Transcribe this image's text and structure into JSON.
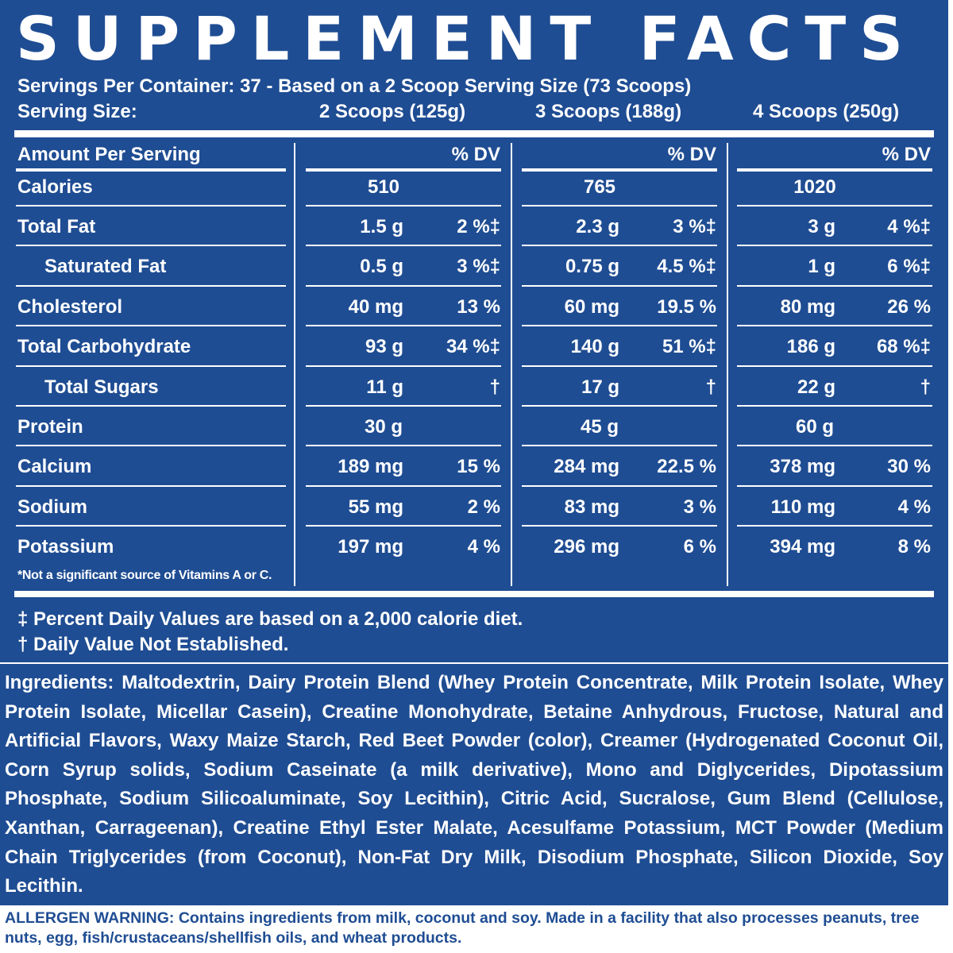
{
  "title": "SUPPLEMENT FACTS",
  "servings_per_container": "Servings Per Container: 37 - Based on a 2 Scoop Serving Size (73 Scoops)",
  "serving_size_label": "Serving Size:",
  "serving_sizes": [
    "2 Scoops (125g)",
    "3 Scoops (188g)",
    "4 Scoops (250g)"
  ],
  "header": {
    "amount_label": "Amount Per Serving",
    "dv_label": "% DV"
  },
  "rows": [
    {
      "name": "Calories",
      "indent": false,
      "values": [
        [
          "510",
          ""
        ],
        [
          "765",
          ""
        ],
        [
          "1020",
          ""
        ]
      ]
    },
    {
      "name": "Total Fat",
      "indent": false,
      "values": [
        [
          "1.5 g",
          "2 %‡"
        ],
        [
          "2.3 g",
          "3 %‡"
        ],
        [
          "3 g",
          "4 %‡"
        ]
      ]
    },
    {
      "name": "Saturated Fat",
      "indent": true,
      "values": [
        [
          "0.5 g",
          "3 %‡"
        ],
        [
          "0.75 g",
          "4.5 %‡"
        ],
        [
          "1 g",
          "6 %‡"
        ]
      ]
    },
    {
      "name": "Cholesterol",
      "indent": false,
      "values": [
        [
          "40 mg",
          "13 %"
        ],
        [
          "60 mg",
          "19.5 %"
        ],
        [
          "80 mg",
          "26 %"
        ]
      ]
    },
    {
      "name": "Total Carbohydrate",
      "indent": false,
      "values": [
        [
          "93 g",
          "34 %‡"
        ],
        [
          "140 g",
          "51 %‡"
        ],
        [
          "186 g",
          "68 %‡"
        ]
      ]
    },
    {
      "name": "Total Sugars",
      "indent": true,
      "values": [
        [
          "11 g",
          "†"
        ],
        [
          "17 g",
          "†"
        ],
        [
          "22 g",
          "†"
        ]
      ]
    },
    {
      "name": "Protein",
      "indent": false,
      "values": [
        [
          "30 g",
          ""
        ],
        [
          "45 g",
          ""
        ],
        [
          "60 g",
          ""
        ]
      ]
    },
    {
      "name": "Calcium",
      "indent": false,
      "values": [
        [
          "189 mg",
          "15 %"
        ],
        [
          "284 mg",
          "22.5 %"
        ],
        [
          "378 mg",
          "30 %"
        ]
      ]
    },
    {
      "name": "Sodium",
      "indent": false,
      "values": [
        [
          "55 mg",
          "2 %"
        ],
        [
          "83 mg",
          "3 %"
        ],
        [
          "110 mg",
          "4 %"
        ]
      ]
    },
    {
      "name": "Potassium",
      "indent": false,
      "values": [
        [
          "197 mg",
          "4 %"
        ],
        [
          "296 mg",
          "6 %"
        ],
        [
          "394 mg",
          "8 %"
        ]
      ]
    }
  ],
  "vitamin_note": "*Not a significant source of Vitamins A or C.",
  "footnote_dv": "‡ Percent Daily Values are based on a 2,000 calorie diet.",
  "footnote_not_established": "† Daily Value Not Established.",
  "ingredients": "Ingredients: Maltodextrin, Dairy Protein Blend (Whey Protein Concentrate, Milk Protein Isolate, Whey Protein Isolate, Micellar Casein), Creatine Monohydrate, Betaine Anhydrous, Fructose, Natural and Artificial Flavors, Waxy Maize Starch, Red Beet Powder (color), Creamer (Hydrogenated Coconut Oil, Corn Syrup solids, Sodium Caseinate (a milk derivative), Mono and Diglycerides, Dipotassium Phosphate, Sodium Silicoaluminate, Soy Lecithin), Citric Acid, Sucralose, Gum Blend (Cellulose, Xanthan, Carrageenan), Creatine Ethyl Ester Malate, Acesulfame Potassium, MCT Powder (Medium Chain Triglycerides (from Coconut), Non-Fat Dry Milk, Disodium Phosphate, Silicon Dioxide, Soy Lecithin.",
  "allergen_warning": "ALLERGEN WARNING: Contains ingredients from milk, coconut and soy. Made in a facility that also processes peanuts, tree nuts, egg, fish/crustaceans/shellfish oils, and wheat products.",
  "colors": {
    "background": "#1f4d93",
    "text": "#ffffff",
    "allergen_text": "#1f4d93"
  }
}
